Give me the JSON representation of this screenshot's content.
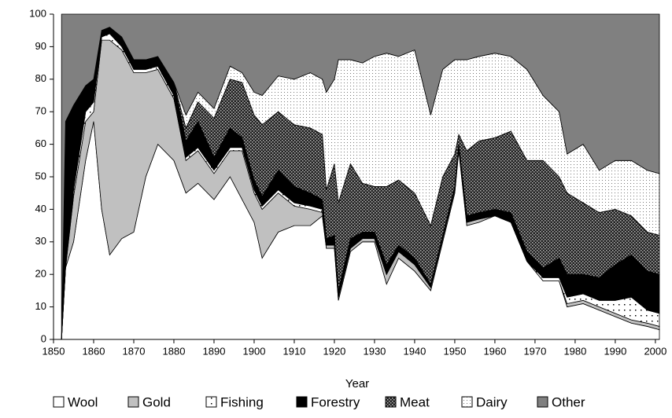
{
  "chart_data": {
    "type": "stacked-area",
    "x_label": "Year",
    "x": [
      1852,
      1853,
      1855,
      1858,
      1860,
      1862,
      1864,
      1867,
      1870,
      1873,
      1876,
      1880,
      1883,
      1886,
      1890,
      1894,
      1897,
      1900,
      1902,
      1906,
      1910,
      1914,
      1917,
      1918,
      1920,
      1921,
      1924,
      1927,
      1930,
      1933,
      1936,
      1940,
      1944,
      1947,
      1950,
      1951,
      1953,
      1956,
      1960,
      1964,
      1968,
      1972,
      1976,
      1978,
      1982,
      1986,
      1990,
      1994,
      1998,
      2001
    ],
    "series": [
      {
        "name": "Wool",
        "color": "#ffffff",
        "pattern": "solid",
        "values": [
          0,
          22,
          30,
          55,
          67,
          40,
          26,
          31,
          33,
          50,
          60,
          55,
          45,
          48,
          43,
          50,
          43,
          36,
          25,
          33,
          35,
          35,
          38,
          28,
          28,
          12,
          27,
          30,
          30,
          17,
          25,
          21,
          15,
          30,
          45,
          58,
          35,
          36,
          38,
          36,
          24,
          18,
          18,
          10,
          11,
          9,
          7,
          5,
          4,
          3
        ]
      },
      {
        "name": "Gold",
        "color": "#c0c0c0",
        "pattern": "solid",
        "values": [
          0,
          0,
          14,
          12,
          3,
          52,
          66,
          58,
          49,
          32,
          23,
          19,
          10,
          10,
          8,
          8,
          15,
          9,
          15,
          12,
          6,
          5,
          1,
          1,
          1,
          1,
          1,
          1,
          1,
          3,
          2,
          2,
          1,
          1,
          1,
          1,
          1,
          1,
          0,
          0,
          0,
          0,
          0,
          1,
          1,
          1,
          1,
          1,
          1,
          1
        ]
      },
      {
        "name": "Fishing",
        "color": "#ffffff",
        "pattern": "sparse-dots",
        "values": [
          0,
          0,
          2,
          3,
          3,
          1,
          2,
          1,
          1,
          1,
          1,
          1,
          1,
          1,
          1,
          1,
          1,
          1,
          1,
          1,
          1,
          1,
          1,
          0,
          0,
          0,
          0,
          0,
          0,
          0,
          0,
          0,
          0,
          0,
          0,
          0,
          0,
          0,
          0,
          0,
          0,
          1,
          1,
          2,
          2,
          2,
          4,
          7,
          4,
          4
        ]
      },
      {
        "name": "Forestry",
        "color": "#000000",
        "pattern": "solid",
        "values": [
          0,
          45,
          26,
          8,
          7,
          2,
          2,
          3,
          3,
          3,
          3,
          4,
          5,
          8,
          4,
          6,
          3,
          3,
          3,
          6,
          5,
          4,
          3,
          2,
          3,
          2,
          3,
          2,
          2,
          3,
          2,
          2,
          1,
          1,
          1,
          1,
          2,
          2,
          2,
          3,
          3,
          3,
          6,
          7,
          6,
          7,
          11,
          13,
          12,
          12
        ]
      },
      {
        "name": "Meat",
        "color": "#404040",
        "pattern": "crosshatch",
        "values": [
          0,
          0,
          0,
          0,
          0,
          0,
          0,
          0,
          0,
          0,
          0,
          0,
          4,
          6,
          12,
          15,
          17,
          20,
          22,
          18,
          19,
          20,
          20,
          15,
          22,
          27,
          23,
          15,
          14,
          24,
          20,
          20,
          18,
          18,
          10,
          3,
          20,
          22,
          22,
          25,
          28,
          33,
          25,
          25,
          22,
          20,
          17,
          12,
          12,
          12
        ]
      },
      {
        "name": "Dairy",
        "color": "#e8e8e8",
        "pattern": "fine-dots",
        "values": [
          0,
          0,
          0,
          0,
          0,
          0,
          0,
          0,
          0,
          0,
          0,
          0,
          4,
          3,
          3,
          4,
          3,
          7,
          9,
          11,
          14,
          17,
          17,
          30,
          26,
          44,
          32,
          37,
          40,
          41,
          38,
          44,
          34,
          33,
          29,
          23,
          28,
          26,
          26,
          23,
          28,
          20,
          20,
          12,
          18,
          13,
          15,
          17,
          19,
          19
        ]
      },
      {
        "name": "Other",
        "color": "#808080",
        "pattern": "solid",
        "values": [
          100,
          33,
          28,
          22,
          20,
          5,
          4,
          7,
          14,
          14,
          13,
          21,
          31,
          24,
          29,
          16,
          18,
          24,
          25,
          19,
          20,
          18,
          20,
          24,
          20,
          14,
          14,
          15,
          13,
          12,
          13,
          11,
          31,
          17,
          14,
          14,
          14,
          13,
          12,
          13,
          17,
          25,
          30,
          43,
          40,
          48,
          45,
          45,
          48,
          49
        ]
      }
    ],
    "xlim": [
      1850,
      2001
    ],
    "ylim": [
      0,
      100
    ],
    "xticks": [
      1850,
      1860,
      1870,
      1880,
      1890,
      1900,
      1910,
      1920,
      1930,
      1940,
      1950,
      1960,
      1970,
      1980,
      1990,
      2000
    ],
    "yticks": [
      0,
      10,
      20,
      30,
      40,
      50,
      60,
      70,
      80,
      90,
      100
    ],
    "legend": "bottom"
  }
}
